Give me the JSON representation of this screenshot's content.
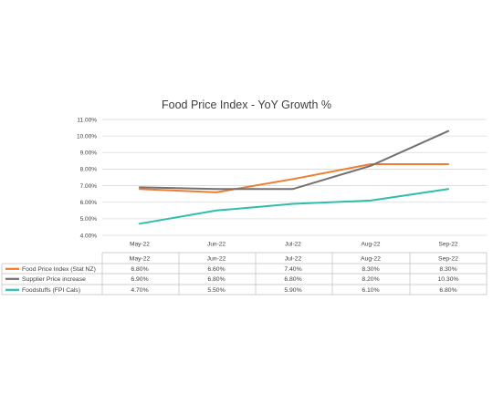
{
  "chart_data": {
    "type": "line",
    "title": "Food Price Index - YoY Growth %",
    "categories": [
      "May-22",
      "Jun-22",
      "Jul-22",
      "Aug-22",
      "Sep-22"
    ],
    "ylim": [
      4.0,
      11.0
    ],
    "yticks": [
      "4.00%",
      "5.00%",
      "6.00%",
      "7.00%",
      "8.00%",
      "9.00%",
      "10.00%",
      "11.00%"
    ],
    "grid": true,
    "legend": "data-table",
    "series": [
      {
        "name": "Food Price Index (Stat NZ)",
        "color": "#ed7d31",
        "values": [
          6.8,
          6.6,
          7.4,
          8.3,
          8.3
        ],
        "labels": [
          "6.80%",
          "6.60%",
          "7.40%",
          "8.30%",
          "8.30%"
        ]
      },
      {
        "name": "Supplier Price increase",
        "color": "#767171",
        "values": [
          6.9,
          6.8,
          6.8,
          8.2,
          10.3
        ],
        "labels": [
          "6.90%",
          "6.80%",
          "6.80%",
          "8.20%",
          "10.30%"
        ]
      },
      {
        "name": "Foodstuffs (FPI Cals)",
        "color": "#2ebfab",
        "values": [
          4.7,
          5.5,
          5.9,
          6.1,
          6.8
        ],
        "labels": [
          "4.70%",
          "5.50%",
          "5.90%",
          "6.10%",
          "6.80%"
        ]
      }
    ]
  }
}
